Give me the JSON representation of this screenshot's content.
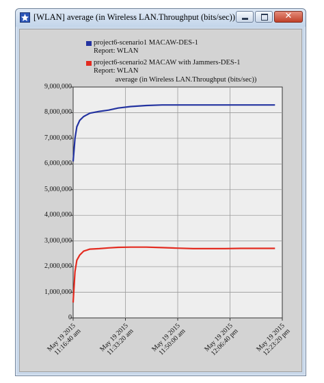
{
  "window": {
    "title": "[WLAN] average (in Wireless LAN.Throughput (bits/sec))",
    "controls": [
      "minimize",
      "maximize",
      "close"
    ],
    "close_glyph": "✕"
  },
  "legend": [
    {
      "line1": "project6-scenario1 MACAW-DES-1",
      "line2": "Report: WLAN",
      "color": "#2333a0"
    },
    {
      "line1": "project6-scenario2 MACAW with Jammers-DES-1",
      "line2": "Report: WLAN",
      "color": "#e32b20"
    }
  ],
  "chart_data": {
    "type": "line",
    "title": "average (in Wireless LAN.Throughput (bits/sec))",
    "xlabel": "",
    "ylabel": "",
    "ylim": [
      0,
      9000000
    ],
    "y_ticks": [
      "0",
      "1,000,000",
      "2,000,000",
      "3,000,000",
      "4,000,000",
      "5,000,000",
      "6,000,000",
      "7,000,000",
      "8,000,000",
      "9,000,000"
    ],
    "x_ticks": [
      {
        "line1": "May 19 2015",
        "line2": "11:16:40 am"
      },
      {
        "line1": "May 19 2015",
        "line2": "11:33:20 am"
      },
      {
        "line1": "May 19 2015",
        "line2": "11:50:00 am"
      },
      {
        "line1": "May 19 2015",
        "line2": "12:06:40 pm"
      },
      {
        "line1": "May 19 2015",
        "line2": "12:23:20 pm"
      }
    ],
    "x": [
      "11:16:40",
      "11:17:15",
      "11:17:50",
      "11:18:45",
      "11:20:00",
      "11:22:00",
      "11:25:00",
      "11:28:00",
      "11:31:00",
      "11:35:00",
      "11:40:00",
      "11:45:00",
      "11:50:00",
      "11:55:00",
      "12:00:00",
      "12:05:00",
      "12:10:00",
      "12:15:00",
      "12:21:00"
    ],
    "series": [
      {
        "name": "project6-scenario1 MACAW-DES-1",
        "color": "#2333a0",
        "values": [
          6100000,
          7000000,
          7450000,
          7700000,
          7850000,
          7980000,
          8050000,
          8100000,
          8180000,
          8240000,
          8280000,
          8300000,
          8300000,
          8300000,
          8300000,
          8300000,
          8300000,
          8300000,
          8300000
        ]
      },
      {
        "name": "project6-scenario2 MACAW with Jammers-DES-1",
        "color": "#e32b20",
        "values": [
          600000,
          1800000,
          2250000,
          2450000,
          2600000,
          2680000,
          2700000,
          2730000,
          2750000,
          2760000,
          2760000,
          2740000,
          2720000,
          2700000,
          2700000,
          2700000,
          2710000,
          2710000,
          2710000
        ]
      }
    ],
    "grid": true,
    "plot_background": "#eeeeee"
  }
}
